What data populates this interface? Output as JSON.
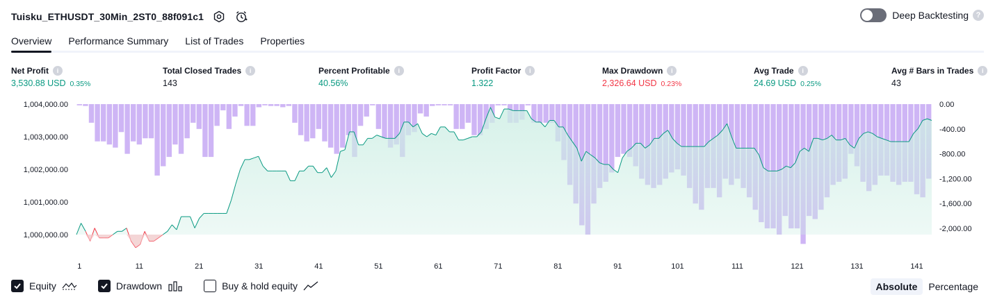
{
  "header": {
    "strategy_name": "Tuisku_ETHUSDT_30Min_2ST0_88f091c1",
    "icons": [
      "settings-icon",
      "alert-clock-icon"
    ],
    "deep_backtesting_label": "Deep Backtesting",
    "deep_backtesting_enabled": false
  },
  "tabs": [
    {
      "label": "Overview",
      "active": true
    },
    {
      "label": "Performance Summary",
      "active": false
    },
    {
      "label": "List of Trades",
      "active": false
    },
    {
      "label": "Properties",
      "active": false
    }
  ],
  "metrics": [
    {
      "label": "Net Profit",
      "value": "3,530.88 USD",
      "pct": "0.35%",
      "color": "green"
    },
    {
      "label": "Total Closed Trades",
      "value": "143",
      "pct": "",
      "color": "default"
    },
    {
      "label": "Percent Profitable",
      "value": "40.56%",
      "pct": "",
      "color": "green"
    },
    {
      "label": "Profit Factor",
      "value": "1.322",
      "pct": "",
      "color": "green"
    },
    {
      "label": "Max Drawdown",
      "value": "2,326.64 USD",
      "pct": "0.23%",
      "color": "red"
    },
    {
      "label": "Avg Trade",
      "value": "24.69 USD",
      "pct": "0.25%",
      "color": "green"
    },
    {
      "label": "Avg # Bars in Trades",
      "value": "43",
      "pct": "",
      "color": "default"
    }
  ],
  "colors": {
    "profit": "#089981",
    "loss": "#f23645",
    "equity_fill": "#cdeee4",
    "drawdown": "#c5a8f3"
  },
  "chart_data": {
    "type": "area",
    "x_ticks": [
      "1",
      "11",
      "21",
      "31",
      "41",
      "51",
      "61",
      "71",
      "81",
      "91",
      "101",
      "111",
      "121",
      "131",
      "141"
    ],
    "left_axis_ticks": [
      "1,004,000.00",
      "1,003,000.00",
      "1,002,000.00",
      "1,001,000.00",
      "1,000,000.00"
    ],
    "right_axis_ticks": [
      "0.00",
      "-400.00",
      "-800.00",
      "-1,200.00",
      "-1,600.00",
      "-2,000.00"
    ],
    "equity_ylim": [
      1000000,
      1004000
    ],
    "drawdown_ylim": [
      -2100,
      0
    ],
    "x_range": [
      1,
      143
    ],
    "series": [
      {
        "name": "Equity",
        "values": [
          1000000,
          1000350,
          1000100,
          999800,
          1000200,
          999900,
          999900,
          999900,
          1000000,
          1000100,
          1000100,
          1000200,
          999800,
          999600,
          999700,
          1000100,
          999800,
          999800,
          999900,
          1000000,
          1000100,
          1000300,
          1000150,
          1000550,
          1000550,
          1000550,
          1000200,
          1000500,
          1000650,
          1000650,
          1000650,
          1000650,
          1000650,
          1000650,
          1001050,
          1001550,
          1002000,
          1002300,
          1002300,
          1002350,
          1002400,
          1002100,
          1001950,
          1001950,
          1001950,
          1001950,
          1001950,
          1001650,
          1001650,
          1001950,
          1001950,
          1002100,
          1002100,
          1001900,
          1001900,
          1002050,
          1001750,
          1001950,
          1002550,
          1002600,
          1003150,
          1003150,
          1002750,
          1002750,
          1002950,
          1002950,
          1003050,
          1003000,
          1002950,
          1002950,
          1002950,
          1003100,
          1003450,
          1003450,
          1003300,
          1003400,
          1003100,
          1003000,
          1003100,
          1003050,
          1003300,
          1003300,
          1003150,
          1003150,
          1002900,
          1002900,
          1002950,
          1003000,
          1003000,
          1003150,
          1003550,
          1003900,
          1003600,
          1003550,
          1003850,
          1003850,
          1003800,
          1003800,
          1003800,
          1003800,
          1003550,
          1003450,
          1003450,
          1003300,
          1003500,
          1003500,
          1003300,
          1003300,
          1003050,
          1002850,
          1002650,
          1002250,
          1002550,
          1002450,
          1002350,
          1002200,
          1002150,
          1002150,
          1002000,
          1001900,
          1002350,
          1002550,
          1002650,
          1002800,
          1002800,
          1002650,
          1002750,
          1002950,
          1002950,
          1003100,
          1003200,
          1002950,
          1002800,
          1002700,
          1002700,
          1002700,
          1002700,
          1002700,
          1002700,
          1002850,
          1002950,
          1003050,
          1003200,
          1003400,
          1003000,
          1002650,
          1002650,
          1002650,
          1002650,
          1002650,
          1002450,
          1002050,
          1001950,
          1001950,
          1001950,
          1002000,
          1002100,
          1002050,
          1002200,
          1002550,
          1002650,
          1002550,
          1002950,
          1002950,
          1002900,
          1002950,
          1003050,
          1002900,
          1002900,
          1002950,
          1002750,
          1002650,
          1002950,
          1003100,
          1003150,
          1003100,
          1003000,
          1002950,
          1002900,
          1002850,
          1002850,
          1002850,
          1002850,
          1002850,
          1003100,
          1003250,
          1003500,
          1003550,
          1003500
        ]
      },
      {
        "name": "Drawdown",
        "values": [
          -20,
          -30,
          -300,
          -600,
          -600,
          -650,
          -700,
          -450,
          -800,
          -600,
          -650,
          -550,
          -550,
          -1150,
          -1000,
          -850,
          -650,
          -800,
          -550,
          -300,
          -400,
          -850,
          -850,
          -350,
          -100,
          -400,
          -200,
          -30,
          -350,
          -350,
          -50,
          -20,
          -30,
          -30,
          -50,
          -30,
          -300,
          -500,
          -600,
          -550,
          -400,
          -600,
          -700,
          -800,
          -700,
          -500,
          -850,
          -350,
          -200,
          -20,
          -400,
          -550,
          -700,
          -650,
          -850,
          -500,
          -450,
          -150,
          -200,
          -30,
          -20,
          -20,
          -20,
          -400,
          -400,
          -300,
          -500,
          -500,
          -400,
          -300,
          -20,
          -20,
          -300,
          -300,
          -250,
          -20,
          -300,
          -300,
          -300,
          -300,
          -600,
          -900,
          -1300,
          -1600,
          -1950,
          -2100,
          -1600,
          -1350,
          -1250,
          -1100,
          -850,
          -800,
          -850,
          -1000,
          -1200,
          -1300,
          -1350,
          -1300,
          -1200,
          -1100,
          -1050,
          -1150,
          -1350,
          -1600,
          -1700,
          -1350,
          -1350,
          -1500,
          -1200,
          -1300,
          -1200,
          -1350,
          -1500,
          -1700,
          -1900,
          -2000,
          -2000,
          -2100,
          -1800,
          -2000,
          -2000,
          -2250,
          -1800,
          -1850,
          -1700,
          -1500,
          -1300,
          -1250,
          -1200,
          -800,
          -1000,
          -1250,
          -1400,
          -1300,
          -1150,
          -1150,
          -1250,
          -1300,
          -1250,
          -1250,
          -1450,
          -1500,
          -1200
        ]
      }
    ]
  },
  "legend": [
    {
      "label": "Equity",
      "checked": true,
      "glyph": "equity-line-icon"
    },
    {
      "label": "Drawdown",
      "checked": true,
      "glyph": "drawdown-bars-icon"
    },
    {
      "label": "Buy & hold equity",
      "checked": false,
      "glyph": "buy-hold-line-icon"
    }
  ],
  "scale_switch": {
    "absolute": "Absolute",
    "percentage": "Percentage",
    "selected": "Absolute"
  }
}
